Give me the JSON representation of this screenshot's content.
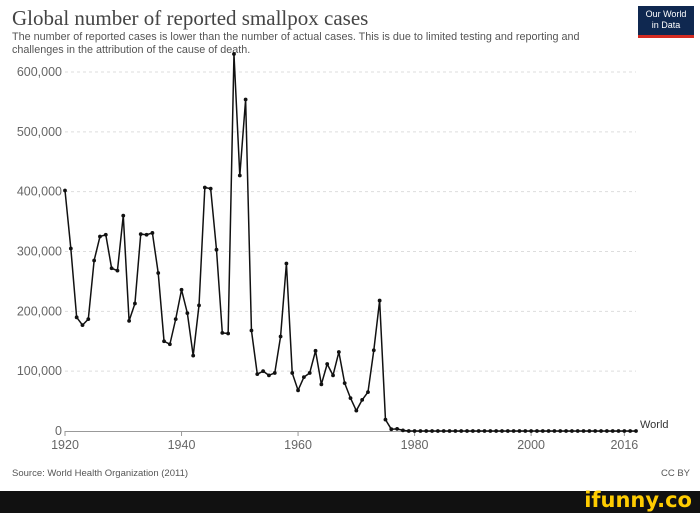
{
  "header": {
    "title": "Global number of reported smallpox cases",
    "subtitle": "The number of reported cases is lower than the number of actual cases. This is due to limited testing and reporting and challenges in the attribution of the cause of death.",
    "logo_line1": "Our World",
    "logo_line2": "in Data"
  },
  "footer": {
    "source": "Source: World Health Organization (2011)",
    "license": "CC BY"
  },
  "watermark": {
    "text": "ifunny.co"
  },
  "colors": {
    "line": "#111111",
    "grid": "#dddddd",
    "logo_bg": "#0f2850",
    "logo_accent": "#d42b21",
    "watermark": "#ffcc00"
  },
  "chart_data": {
    "type": "line",
    "title": "Global number of reported smallpox cases",
    "xlabel": "",
    "ylabel": "",
    "xlim": [
      1920,
      2018
    ],
    "ylim": [
      0,
      600000
    ],
    "grid": true,
    "x_ticks": [
      1920,
      1940,
      1960,
      1980,
      2000,
      2016
    ],
    "x_tick_labels": [
      "1920",
      "1940",
      "1960",
      "1980",
      "2000",
      "2016"
    ],
    "y_ticks": [
      0,
      100000,
      200000,
      300000,
      400000,
      500000,
      600000
    ],
    "y_tick_labels": [
      "0",
      "100,000",
      "200,000",
      "300,000",
      "400,000",
      "500,000",
      "600,000"
    ],
    "series": [
      {
        "name": "World",
        "x": [
          1920,
          1921,
          1922,
          1923,
          1924,
          1925,
          1926,
          1927,
          1928,
          1929,
          1930,
          1931,
          1932,
          1933,
          1934,
          1935,
          1936,
          1937,
          1938,
          1939,
          1940,
          1941,
          1942,
          1943,
          1944,
          1945,
          1946,
          1947,
          1948,
          1949,
          1950,
          1951,
          1952,
          1953,
          1954,
          1955,
          1956,
          1957,
          1958,
          1959,
          1960,
          1961,
          1962,
          1963,
          1964,
          1965,
          1966,
          1967,
          1968,
          1969,
          1970,
          1971,
          1972,
          1973,
          1974,
          1975,
          1976,
          1977,
          1978,
          1979,
          1980,
          1981,
          1982,
          1983,
          1984,
          1985,
          1986,
          1987,
          1988,
          1989,
          1990,
          1991,
          1992,
          1993,
          1994,
          1995,
          1996,
          1997,
          1998,
          1999,
          2000,
          2001,
          2002,
          2003,
          2004,
          2005,
          2006,
          2007,
          2008,
          2009,
          2010,
          2011,
          2012,
          2013,
          2014,
          2015,
          2016,
          2017,
          2018
        ],
        "values": [
          402000,
          305000,
          190000,
          177000,
          187000,
          285000,
          325000,
          328000,
          272000,
          268000,
          360000,
          184000,
          213000,
          329000,
          328000,
          331000,
          264000,
          150000,
          145000,
          187000,
          236000,
          197000,
          126000,
          210000,
          407000,
          405000,
          303000,
          164000,
          163000,
          630000,
          427000,
          554000,
          168000,
          95000,
          100000,
          93000,
          97000,
          158000,
          280000,
          97000,
          68000,
          90000,
          97000,
          134000,
          78000,
          112000,
          93000,
          132000,
          80000,
          55000,
          34000,
          52000,
          65000,
          135000,
          218000,
          19000,
          3000,
          3500,
          1000,
          0,
          0,
          0,
          0,
          0,
          0,
          0,
          0,
          0,
          0,
          0,
          0,
          0,
          0,
          0,
          0,
          0,
          0,
          0,
          0,
          0,
          0,
          0,
          0,
          0,
          0,
          0,
          0,
          0,
          0,
          0,
          0,
          0,
          0,
          0,
          0,
          0,
          0,
          0,
          0
        ]
      }
    ]
  }
}
